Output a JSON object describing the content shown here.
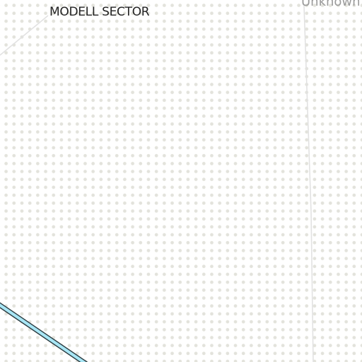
{
  "map": {
    "labels": {
      "sector_name": "MODELL SECTOR",
      "unknown_area": "Unknown"
    },
    "colors": {
      "background": "#ffffff",
      "dot_pattern": "#e3e3dc",
      "boundary_line": "#e2e2e2",
      "road_fill": "#a8e6f5",
      "road_outline": "#2a3a3f"
    }
  }
}
